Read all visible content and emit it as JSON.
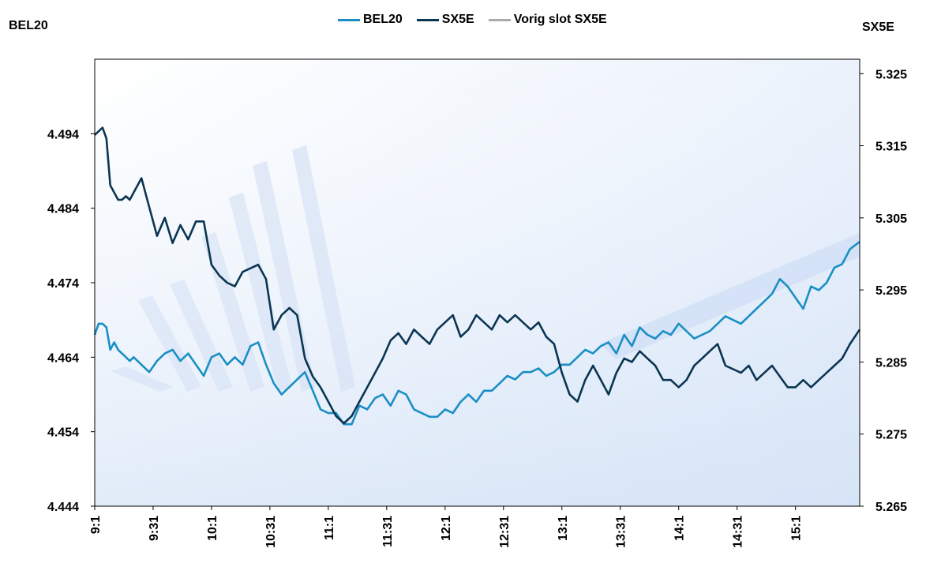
{
  "chart_data": {
    "type": "line",
    "left_axis": {
      "title": "BEL20",
      "ylim": [
        4.444,
        4.504
      ],
      "ticks": [
        4.444,
        4.454,
        4.464,
        4.474,
        4.484,
        4.494
      ]
    },
    "right_axis": {
      "title": "SX5E",
      "ylim": [
        5.265,
        5.327
      ],
      "ticks": [
        5.265,
        5.275,
        5.285,
        5.295,
        5.305,
        5.315,
        5.325
      ]
    },
    "x_ticks": [
      "9:1",
      "9:31",
      "10:1",
      "10:31",
      "11:1",
      "11:31",
      "12:1",
      "12:31",
      "13:1",
      "13:31",
      "14:1",
      "14:31",
      "15:1"
    ],
    "x_range_minutes": [
      0,
      393
    ],
    "legend": [
      {
        "name": "BEL20",
        "color": "#1a8fc4"
      },
      {
        "name": "SX5E",
        "color": "#0b3552"
      },
      {
        "name": "Vorig slot SX5E",
        "color": "#aaaaaa"
      }
    ],
    "series": [
      {
        "name": "BEL20",
        "axis": "left",
        "color": "#1a8fc4",
        "x": [
          0,
          2,
          4,
          6,
          8,
          10,
          12,
          14,
          16,
          18,
          20,
          24,
          28,
          32,
          36,
          40,
          44,
          48,
          52,
          56,
          60,
          64,
          68,
          72,
          76,
          80,
          84,
          88,
          92,
          96,
          100,
          104,
          108,
          112,
          116,
          120,
          124,
          128,
          132,
          136,
          140,
          144,
          148,
          152,
          156,
          160,
          164,
          168,
          172,
          176,
          180,
          184,
          188,
          192,
          196,
          200,
          204,
          208,
          212,
          216,
          220,
          224,
          228,
          232,
          236,
          240,
          244,
          248,
          252,
          256,
          260,
          264,
          268,
          272,
          276,
          280,
          284,
          288,
          292,
          296,
          300,
          304,
          308,
          312,
          316,
          320,
          324,
          328,
          332,
          336,
          340,
          344,
          348,
          352,
          356,
          360,
          364,
          368,
          372,
          376,
          380,
          384,
          388,
          393
        ],
        "values": [
          4.467,
          4.4685,
          4.4685,
          4.468,
          4.465,
          4.466,
          4.465,
          4.4645,
          4.464,
          4.4635,
          4.464,
          4.463,
          4.462,
          4.4635,
          4.4645,
          4.465,
          4.4635,
          4.4645,
          4.463,
          4.4615,
          4.464,
          4.4645,
          4.463,
          4.464,
          4.463,
          4.4655,
          4.466,
          4.463,
          4.4605,
          4.459,
          4.46,
          4.461,
          4.462,
          4.4595,
          4.457,
          4.4565,
          4.4565,
          4.455,
          4.455,
          4.4575,
          4.457,
          4.4585,
          4.459,
          4.4575,
          4.4595,
          4.459,
          4.457,
          4.4565,
          4.456,
          4.456,
          4.457,
          4.4565,
          4.458,
          4.459,
          4.458,
          4.4595,
          4.4595,
          4.4605,
          4.4615,
          4.461,
          4.462,
          4.462,
          4.4625,
          4.4615,
          4.462,
          4.463,
          4.463,
          4.464,
          4.465,
          4.4645,
          4.4655,
          4.466,
          4.4645,
          4.467,
          4.4655,
          4.468,
          4.467,
          4.4665,
          4.4675,
          4.467,
          4.4685,
          4.4675,
          4.4665,
          4.467,
          4.4675,
          4.4685,
          4.4695,
          4.469,
          4.4685,
          4.4695,
          4.4705,
          4.4715,
          4.4725,
          4.4745,
          4.4735,
          4.472,
          4.4705,
          4.4735,
          4.473,
          4.474,
          4.476,
          4.4765,
          4.4785,
          4.4795
        ]
      },
      {
        "name": "SX5E",
        "axis": "right",
        "color": "#0b3552",
        "x": [
          0,
          2,
          4,
          6,
          8,
          10,
          12,
          14,
          16,
          18,
          20,
          24,
          28,
          32,
          36,
          40,
          44,
          48,
          52,
          56,
          60,
          64,
          68,
          72,
          76,
          80,
          84,
          88,
          92,
          96,
          100,
          104,
          108,
          112,
          116,
          120,
          124,
          128,
          132,
          136,
          140,
          144,
          148,
          152,
          156,
          160,
          164,
          168,
          172,
          176,
          180,
          184,
          188,
          192,
          196,
          200,
          204,
          208,
          212,
          216,
          220,
          224,
          228,
          232,
          236,
          240,
          244,
          248,
          252,
          256,
          260,
          264,
          268,
          272,
          276,
          280,
          284,
          288,
          292,
          296,
          300,
          304,
          308,
          312,
          316,
          320,
          324,
          328,
          332,
          336,
          340,
          344,
          348,
          352,
          356,
          360,
          364,
          368,
          372,
          376,
          380,
          384,
          388,
          393
        ],
        "values": [
          5.3165,
          5.317,
          5.3175,
          5.316,
          5.3095,
          5.3085,
          5.3075,
          5.3075,
          5.308,
          5.3075,
          5.3085,
          5.3105,
          5.3065,
          5.3025,
          5.305,
          5.3015,
          5.304,
          5.302,
          5.3045,
          5.3045,
          5.2985,
          5.297,
          5.296,
          5.2955,
          5.2975,
          5.298,
          5.2985,
          5.2965,
          5.2895,
          5.2915,
          5.2925,
          5.2915,
          5.2855,
          5.283,
          5.2815,
          5.2795,
          5.2775,
          5.2765,
          5.2775,
          5.2795,
          5.2815,
          5.2835,
          5.2855,
          5.288,
          5.289,
          5.2875,
          5.2895,
          5.2885,
          5.2875,
          5.2895,
          5.2905,
          5.2915,
          5.2885,
          5.2895,
          5.2915,
          5.2905,
          5.2895,
          5.2915,
          5.2905,
          5.2915,
          5.2905,
          5.2895,
          5.2905,
          5.2885,
          5.2875,
          5.2835,
          5.2805,
          5.2795,
          5.2825,
          5.2845,
          5.2825,
          5.2805,
          5.2835,
          5.2855,
          5.285,
          5.2865,
          5.2855,
          5.2845,
          5.2825,
          5.2825,
          5.2815,
          5.2825,
          5.2845,
          5.2855,
          5.2865,
          5.2875,
          5.2845,
          5.284,
          5.2835,
          5.2845,
          5.2825,
          5.2835,
          5.2845,
          5.283,
          5.2815,
          5.2815,
          5.2825,
          5.2815,
          5.2825,
          5.2835,
          5.2845,
          5.2855,
          5.2875,
          5.2895
        ]
      }
    ]
  }
}
